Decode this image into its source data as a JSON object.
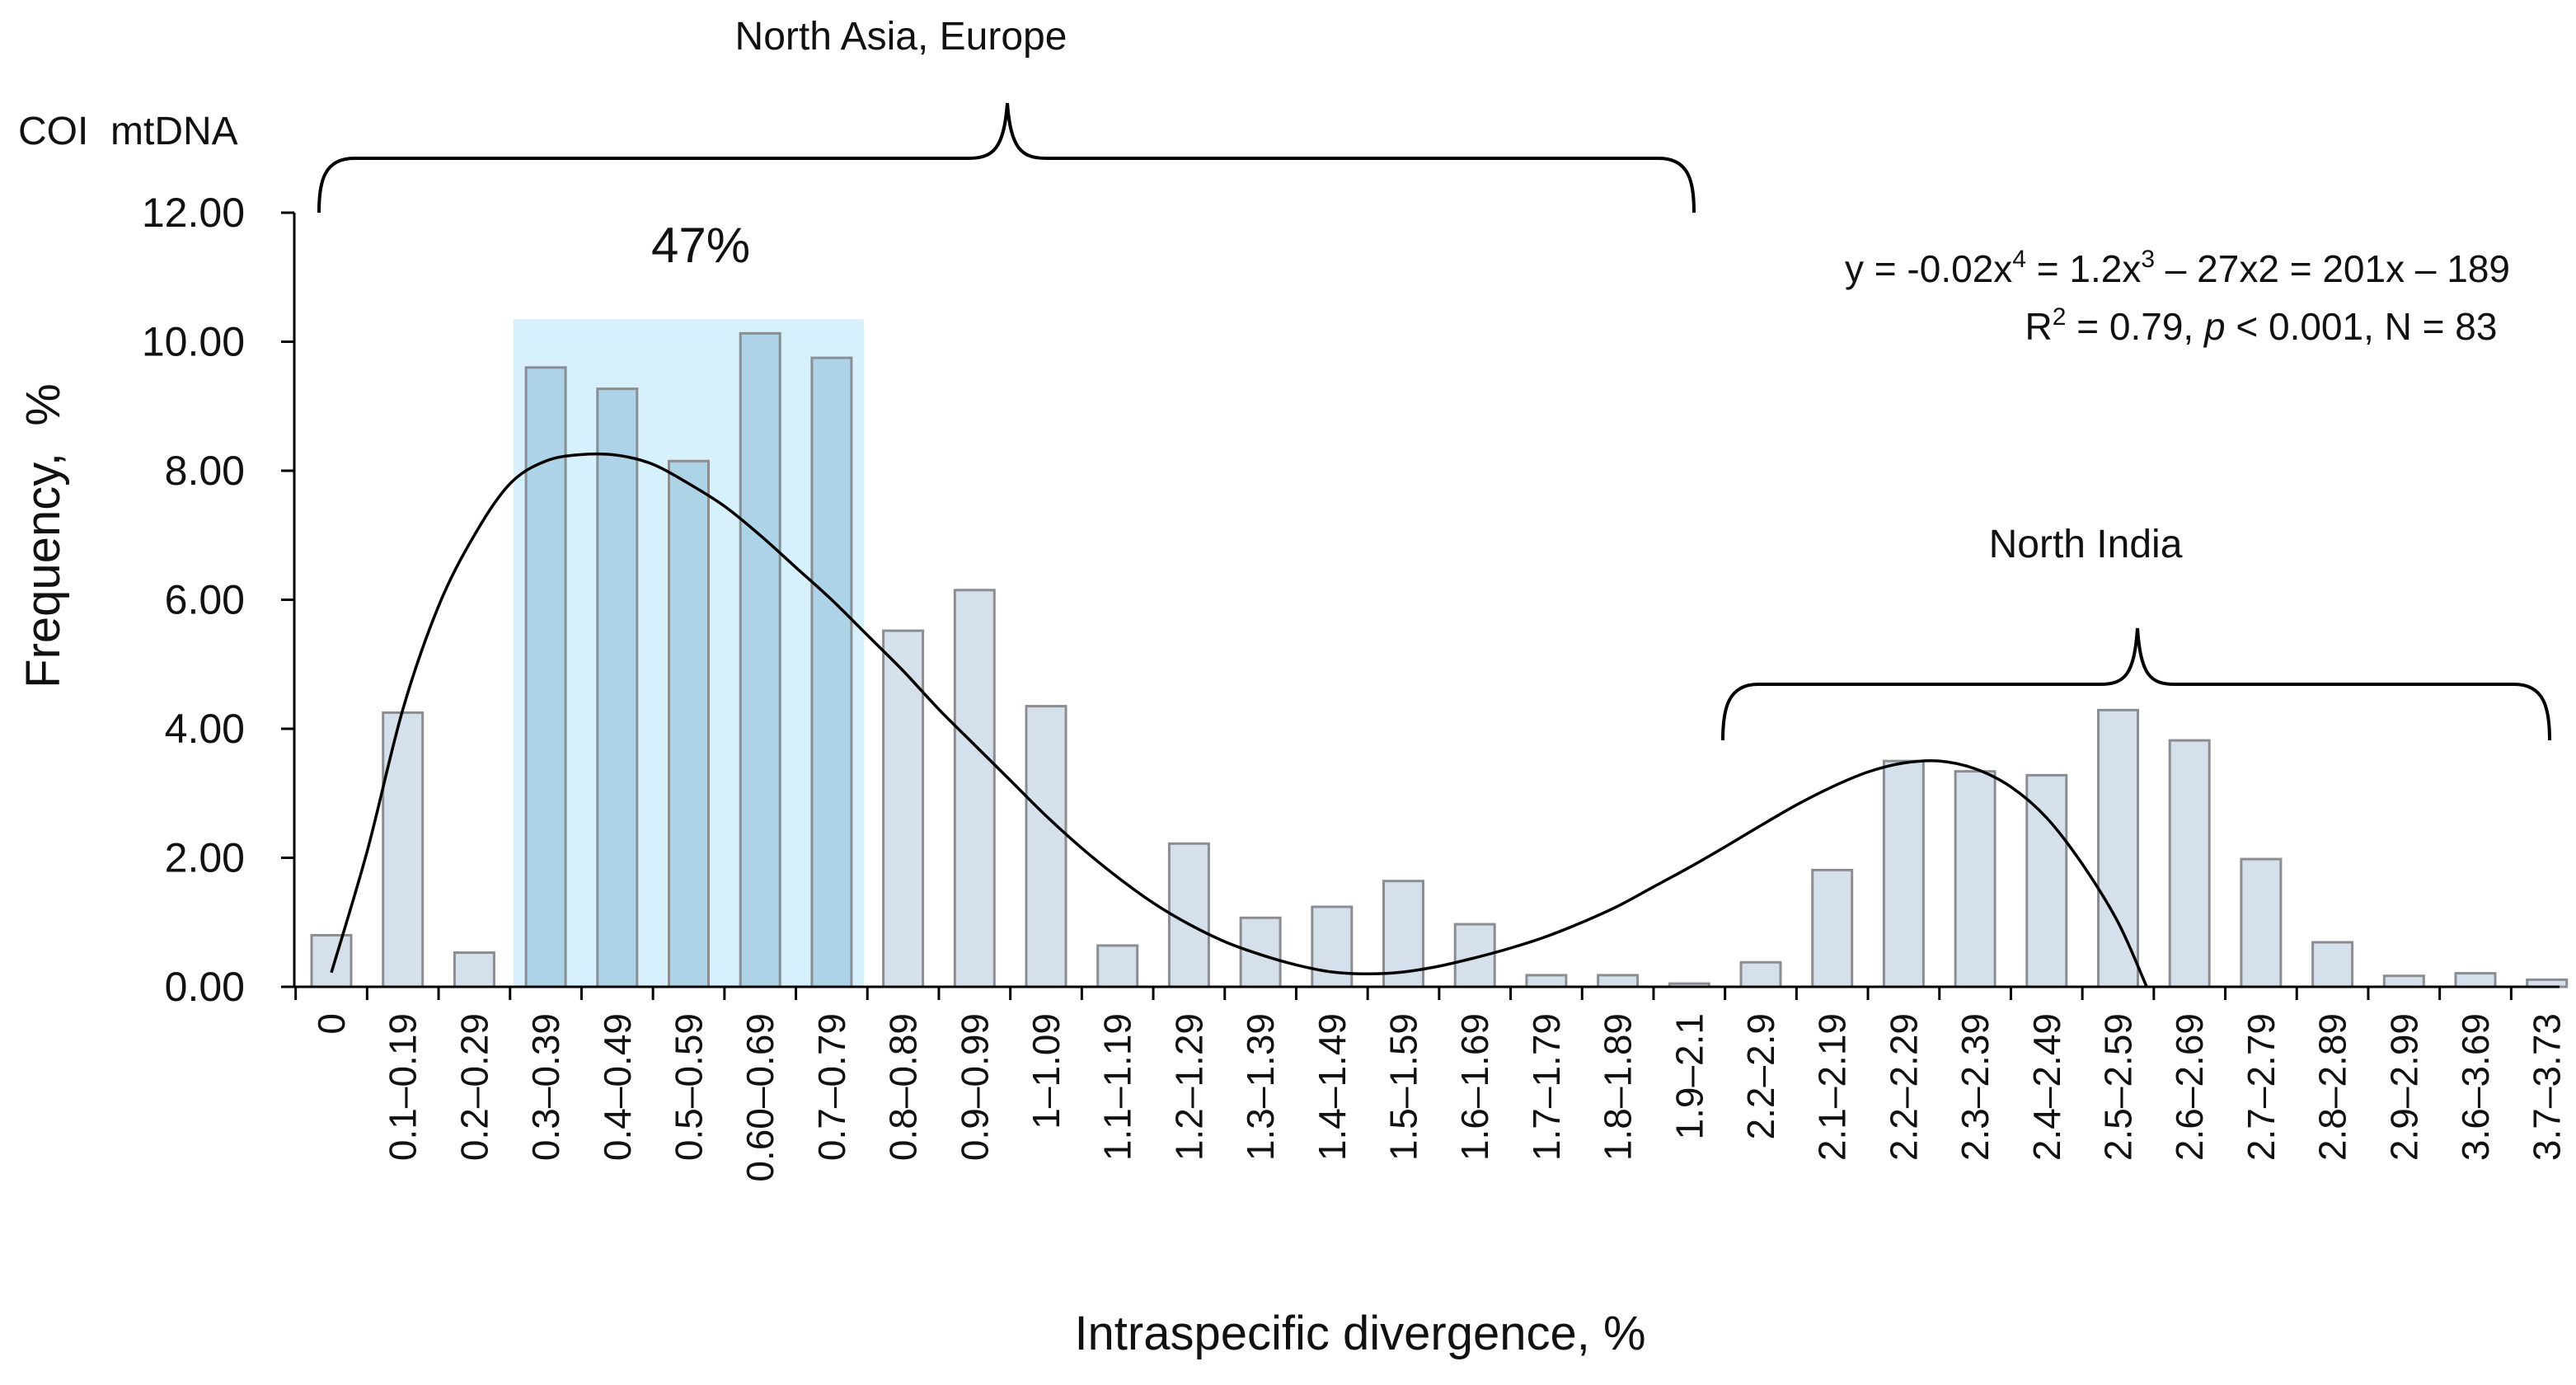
{
  "chart_data": {
    "type": "bar",
    "title": "COI  mtDNA",
    "xlabel": "Intraspecific divergence, %",
    "ylabel": "Frequency,  %",
    "ylim": [
      0,
      12
    ],
    "yticks": [
      "0.00",
      "2.00",
      "4.00",
      "6.00",
      "8.00",
      "10.00",
      "12.00"
    ],
    "categories": [
      "0",
      "0.1–0.19",
      "0.2–0.29",
      "0.3–0.39",
      "0.4–0.49",
      "0.5–0.59",
      "0.60–0.69",
      "0.7–0.79",
      "0.8–0.89",
      "0.9–0.99",
      "1–1.09",
      "1.1–1.19",
      "1.2–1.29",
      "1.3–1.39",
      "1.4–1.49",
      "1.5–1.59",
      "1.6–1.69",
      "1.7–1.79",
      "1.8–1.89",
      "1.9–2.1",
      "2.2–2.9",
      "2.1–2.19",
      "2.2–2.29",
      "2.3–2.39",
      "2.4–2.49",
      "2.5–2.59",
      "2.6–2.69",
      "2.7–2.79",
      "2.8–2.89",
      "2.9–2.99",
      "3.6–3.69",
      "3.7–3.73"
    ],
    "values": [
      0.8,
      4.25,
      0.53,
      9.6,
      9.27,
      8.15,
      10.13,
      9.75,
      5.52,
      6.15,
      4.35,
      0.64,
      2.22,
      1.07,
      1.24,
      1.64,
      0.97,
      0.18,
      0.18,
      0.05,
      0.38,
      1.81,
      3.5,
      3.34,
      3.28,
      4.29,
      3.82,
      1.98,
      0.69,
      0.17,
      0.21,
      0.11
    ],
    "highlight": {
      "from_index": 3,
      "to_index": 7,
      "label": "47%",
      "ymax": 10.35
    },
    "trendline_points": [
      [
        0,
        0.22
      ],
      [
        0.5,
        2.1
      ],
      [
        1,
        4.3
      ],
      [
        1.5,
        5.9
      ],
      [
        2,
        7.0
      ],
      [
        2.5,
        7.8
      ],
      [
        3,
        8.15
      ],
      [
        3.5,
        8.25
      ],
      [
        4,
        8.24
      ],
      [
        4.5,
        8.1
      ],
      [
        5,
        7.8
      ],
      [
        5.5,
        7.45
      ],
      [
        6,
        7.0
      ],
      [
        6.5,
        6.5
      ],
      [
        7,
        6.0
      ],
      [
        7.5,
        5.45
      ],
      [
        8,
        4.9
      ],
      [
        8.5,
        4.3
      ],
      [
        9,
        3.75
      ],
      [
        9.5,
        3.2
      ],
      [
        10,
        2.65
      ],
      [
        10.5,
        2.15
      ],
      [
        11,
        1.7
      ],
      [
        11.5,
        1.3
      ],
      [
        12,
        0.97
      ],
      [
        12.5,
        0.7
      ],
      [
        13,
        0.5
      ],
      [
        13.5,
        0.34
      ],
      [
        14,
        0.23
      ],
      [
        14.5,
        0.2
      ],
      [
        15,
        0.23
      ],
      [
        15.5,
        0.32
      ],
      [
        16,
        0.45
      ],
      [
        16.5,
        0.6
      ],
      [
        17,
        0.78
      ],
      [
        17.5,
        1.0
      ],
      [
        18,
        1.25
      ],
      [
        18.5,
        1.55
      ],
      [
        19,
        1.85
      ],
      [
        19.5,
        2.17
      ],
      [
        20,
        2.5
      ],
      [
        20.5,
        2.82
      ],
      [
        21,
        3.1
      ],
      [
        21.5,
        3.33
      ],
      [
        22,
        3.47
      ],
      [
        22.5,
        3.5
      ],
      [
        23,
        3.38
      ],
      [
        23.5,
        3.1
      ],
      [
        24,
        2.62
      ],
      [
        24.5,
        1.9
      ],
      [
        25,
        1.0
      ],
      [
        25.4,
        0.0
      ]
    ],
    "trendline_equation": {
      "line1_parts": [
        "y = -0.02x",
        "4",
        " = 1.2x",
        "3",
        " – 27x2 = 201x – 189"
      ],
      "line2_parts": [
        "R",
        "2",
        " = 0.79, ",
        "p",
        " < 0.001, N = 83"
      ]
    },
    "annotations": {
      "top_bracket_label": "North Asia, Europe",
      "right_bracket_label": "North India"
    },
    "colors": {
      "bar_fill": "#d6e0eb",
      "bar_highlight_fill": "#add4e6",
      "bar_stroke": "#8a8e93",
      "highlight_band": "#d6f1fb",
      "trendline": "#000000",
      "axis": "#000000"
    }
  }
}
